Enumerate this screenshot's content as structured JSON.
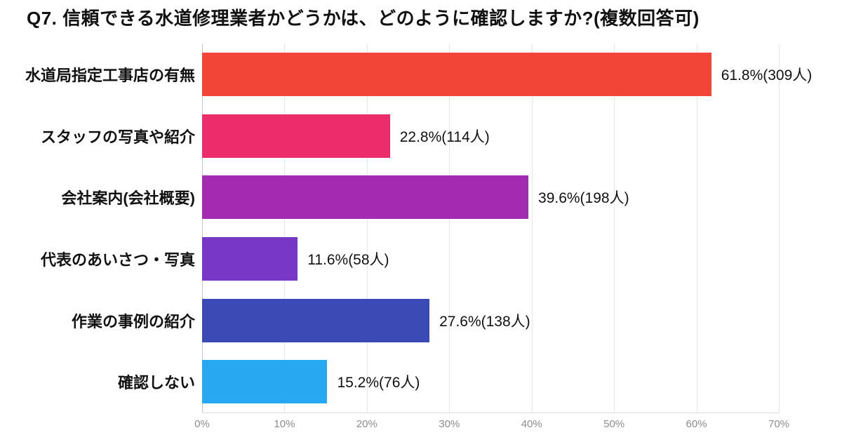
{
  "title": "Q7. 信頼できる水道修理業者かどうかは、どのように確認しますか?(複数回答可)",
  "chart_data": {
    "type": "bar",
    "orientation": "horizontal",
    "title": "Q7. 信頼できる水道修理業者かどうかは、どのように確認しますか?(複数回答可)",
    "categories": [
      "水道局指定工事店の有無",
      "スタッフの写真や紹介",
      "会社案内(会社概要)",
      "代表のあいさつ・写真",
      "作業の事例の紹介",
      "確認しない"
    ],
    "values": [
      61.8,
      22.8,
      39.6,
      11.6,
      27.6,
      15.2
    ],
    "counts": [
      309,
      114,
      198,
      58,
      138,
      76
    ],
    "value_labels": [
      "61.8%(309人)",
      "22.8%(114人)",
      "39.6%(198人)",
      "11.6%(58人)",
      "27.6%(138人)",
      "15.2%(76人)"
    ],
    "bar_colors": [
      "#F34537",
      "#EC2D69",
      "#A22BB2",
      "#7637C4",
      "#3B4BB5",
      "#28A8F0"
    ],
    "xlabel": "",
    "ylabel": "",
    "xlim": [
      0,
      70
    ],
    "x_ticks": [
      "0%",
      "10%",
      "20%",
      "30%",
      "40%",
      "50%",
      "60%",
      "70%"
    ],
    "grid": true,
    "legend": "none"
  }
}
